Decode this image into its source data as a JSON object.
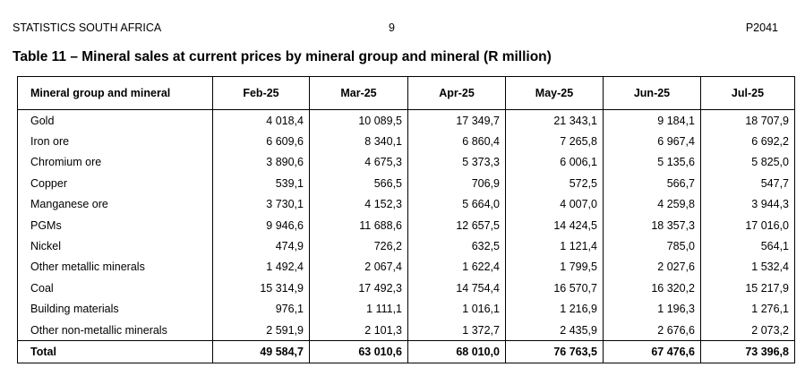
{
  "page_header": {
    "left": "STATISTICS SOUTH AFRICA",
    "center": "9",
    "right": "P2041"
  },
  "table_title": "Table 11 – Mineral sales at current prices by mineral group and mineral (R million)",
  "table": {
    "columns": [
      "Mineral group and mineral",
      "Feb-25",
      "Mar-25",
      "Apr-25",
      "May-25",
      "Jun-25",
      "Jul-25"
    ],
    "rows": [
      [
        "Gold",
        "4 018,4",
        "10 089,5",
        "17 349,7",
        "21 343,1",
        "9 184,1",
        "18 707,9"
      ],
      [
        "Iron ore",
        "6 609,6",
        "8 340,1",
        "6 860,4",
        "7 265,8",
        "6 967,4",
        "6 692,2"
      ],
      [
        "Chromium ore",
        "3 890,6",
        "4 675,3",
        "5 373,3",
        "6 006,1",
        "5 135,6",
        "5 825,0"
      ],
      [
        "Copper",
        "539,1",
        "566,5",
        "706,9",
        "572,5",
        "566,7",
        "547,7"
      ],
      [
        "Manganese ore",
        "3 730,1",
        "4 152,3",
        "5 664,0",
        "4 007,0",
        "4 259,8",
        "3 944,3"
      ],
      [
        "PGMs",
        "9 946,6",
        "11 688,6",
        "12 657,5",
        "14 424,5",
        "18 357,3",
        "17 016,0"
      ],
      [
        "Nickel",
        "474,9",
        "726,2",
        "632,5",
        "1 121,4",
        "785,0",
        "564,1"
      ],
      [
        "Other metallic minerals",
        "1 492,4",
        "2 067,4",
        "1 622,4",
        "1 799,5",
        "2 027,6",
        "1 532,4"
      ],
      [
        "Coal",
        "15 314,9",
        "17 492,3",
        "14 754,4",
        "16 570,7",
        "16 320,2",
        "15 217,9"
      ],
      [
        "Building materials",
        "976,1",
        "1 111,1",
        "1 016,1",
        "1 216,9",
        "1 196,3",
        "1 276,1"
      ],
      [
        "Other non-metallic minerals",
        "2 591,9",
        "2 101,3",
        "1 372,7",
        "2 435,9",
        "2 676,6",
        "2 073,2"
      ]
    ],
    "total": [
      "Total",
      "49 584,7",
      "63 010,6",
      "68 010,0",
      "76 763,5",
      "67 476,6",
      "73 396,8"
    ]
  }
}
